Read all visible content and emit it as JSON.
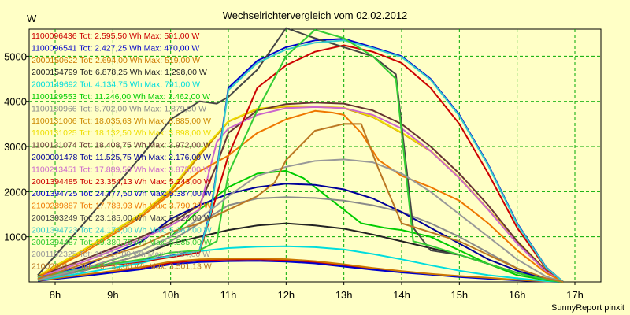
{
  "chart_data": {
    "type": "line",
    "title": "Wechselrichtervergleich vom 02.02.2012",
    "ylabel": "W",
    "credit": "SunnyReport pinxit",
    "ylim": [
      0,
      5600
    ],
    "xlim": [
      7.55,
      17.45
    ],
    "yticks": [
      1000,
      2000,
      3000,
      4000,
      5000
    ],
    "xticks": [
      {
        "v": 8,
        "label": "8h"
      },
      {
        "v": 9,
        "label": "9h"
      },
      {
        "v": 10,
        "label": "10h"
      },
      {
        "v": 11,
        "label": "11h"
      },
      {
        "v": 12,
        "label": "12h"
      },
      {
        "v": 13,
        "label": "13h"
      },
      {
        "v": 14,
        "label": "14h"
      },
      {
        "v": 15,
        "label": "15h"
      },
      {
        "v": 16,
        "label": "16h"
      },
      {
        "v": 17,
        "label": "17h"
      }
    ],
    "series": [
      {
        "name": "1100096436 Tot: 2.595,50 Wh Max: 501,00 W",
        "color": "#cc0000",
        "x": [
          7.7,
          8.5,
          9.5,
          10,
          10.5,
          11,
          11.5,
          12,
          12.5,
          13,
          13.5,
          14,
          14.5,
          15,
          15.5,
          16,
          16.5,
          16.8
        ],
        "y": [
          30,
          150,
          300,
          420,
          480,
          495,
          500,
          480,
          430,
          360,
          290,
          230,
          170,
          120,
          80,
          40,
          10,
          0
        ]
      },
      {
        "name": "1100096541 Tot: 2.427,25 Wh Max: 470,00 W",
        "color": "#0000cc",
        "x": [
          7.7,
          8.5,
          9.5,
          10,
          10.5,
          11,
          11.5,
          12,
          12.5,
          13,
          13.5,
          14,
          14.5,
          15,
          15.5,
          16,
          16.5,
          16.8
        ],
        "y": [
          25,
          130,
          280,
          390,
          440,
          460,
          465,
          450,
          410,
          340,
          270,
          210,
          160,
          110,
          70,
          35,
          8,
          0
        ]
      },
      {
        "name": "2000150622 Tot: 2.694,00 Wh Max: 519,00 W",
        "color": "#cc7700",
        "x": [
          7.7,
          8.5,
          9.5,
          10,
          10.5,
          11,
          11.5,
          12,
          12.5,
          13,
          13.5,
          14,
          14.5,
          15,
          15.5,
          16,
          16.5,
          16.8
        ],
        "y": [
          30,
          160,
          330,
          450,
          500,
          515,
          519,
          505,
          460,
          390,
          310,
          240,
          180,
          130,
          90,
          45,
          12,
          0
        ]
      },
      {
        "name": "2000154799 Tot: 6.878,25 Wh Max: 1.298,00 W",
        "color": "#222222",
        "x": [
          7.7,
          8.5,
          9.5,
          10,
          10.5,
          11,
          11.5,
          12,
          12.5,
          13,
          13.5,
          14,
          14.5,
          15,
          15.5,
          16,
          16.5,
          16.8
        ],
        "y": [
          60,
          250,
          600,
          850,
          1000,
          1150,
          1250,
          1298,
          1250,
          1180,
          1050,
          900,
          750,
          600,
          400,
          200,
          60,
          0
        ]
      },
      {
        "name": "2000149692 Tot: 4.134,75 Wh Max: 791,00 W",
        "color": "#00dddd",
        "x": [
          7.7,
          8.5,
          9.5,
          10,
          10.5,
          11,
          11.5,
          12,
          12.5,
          13,
          13.5,
          14,
          14.5,
          15,
          15.5,
          16,
          16.5,
          16.8
        ],
        "y": [
          40,
          200,
          420,
          580,
          680,
          750,
          780,
          791,
          770,
          720,
          620,
          500,
          370,
          250,
          150,
          80,
          20,
          0
        ]
      },
      {
        "name": "1100129553 Tot: 11.246,00 Wh Max: 2.462,00 W",
        "color": "#00cc00",
        "x": [
          7.7,
          8.5,
          9.5,
          10,
          10.5,
          11,
          11.5,
          12,
          12.3,
          12.7,
          13,
          13.3,
          13.7,
          14,
          14.5,
          15,
          15.5,
          16,
          16.5,
          16.8
        ],
        "y": [
          50,
          280,
          700,
          1000,
          1600,
          2100,
          2400,
          2462,
          2300,
          1900,
          1600,
          1300,
          1200,
          1150,
          1000,
          700,
          400,
          150,
          40,
          0
        ]
      },
      {
        "name": "1100130966 Tot: 8.702,00 Wh Max: 1.879,00 W",
        "color": "#8a8a8a",
        "x": [
          7.7,
          8.5,
          9.5,
          10,
          10.5,
          11,
          11.5,
          12,
          12.5,
          13,
          13.5,
          14,
          14.5,
          15,
          15.5,
          16,
          16.5,
          16.8
        ],
        "y": [
          50,
          250,
          600,
          900,
          1300,
          1700,
          1850,
          1879,
          1860,
          1800,
          1700,
          1550,
          1300,
          1000,
          650,
          300,
          80,
          0
        ]
      },
      {
        "name": "1100131006 Tot: 18.035,63 Wh Max: 3.885,00 W",
        "color": "#cc8800",
        "x": [
          7.7,
          8.5,
          9.5,
          10,
          10.5,
          11,
          11.5,
          12,
          12.5,
          13,
          13.5,
          14,
          14.5,
          15,
          15.5,
          16,
          16.5,
          16.8
        ],
        "y": [
          120,
          700,
          1500,
          2000,
          2800,
          3550,
          3820,
          3885,
          3880,
          3850,
          3650,
          3300,
          2900,
          2300,
          1600,
          900,
          250,
          0
        ]
      },
      {
        "name": "1100131025 Tot: 18.132,50 Wh Max: 3.898,00 W",
        "color": "#eedd00",
        "x": [
          7.7,
          8.5,
          9.5,
          10,
          10.5,
          11,
          11.5,
          12,
          12.5,
          13,
          13.5,
          14,
          14.5,
          15,
          15.5,
          16,
          16.5,
          16.8
        ],
        "y": [
          130,
          720,
          1520,
          2050,
          2850,
          3560,
          3840,
          3898,
          3890,
          3860,
          3660,
          3310,
          2910,
          2310,
          1610,
          910,
          260,
          0
        ]
      },
      {
        "name": "1100131074 Tot: 18.408,75 Wh Max: 3.972,00 W",
        "color": "#663333",
        "x": [
          7.7,
          8.5,
          9.5,
          10,
          10.5,
          10.8,
          11,
          11.5,
          12,
          12.5,
          13,
          13.5,
          14,
          14.5,
          15,
          15.5,
          16,
          16.5,
          16.8
        ],
        "y": [
          120,
          500,
          1000,
          1300,
          1700,
          2600,
          3300,
          3800,
          3940,
          3972,
          3950,
          3800,
          3500,
          3000,
          2400,
          1700,
          900,
          250,
          0
        ]
      },
      {
        "name": "2000001478 Tot: 11.525,75 Wh Max: 2.176,00 W",
        "color": "#000099",
        "x": [
          7.7,
          8.5,
          9.5,
          10,
          10.5,
          11,
          11.5,
          12,
          12.5,
          13,
          13.5,
          14,
          14.5,
          15,
          15.5,
          16,
          16.5,
          16.8
        ],
        "y": [
          60,
          350,
          900,
          1400,
          1700,
          1950,
          2100,
          2176,
          2150,
          2050,
          1850,
          1550,
          1200,
          850,
          500,
          250,
          60,
          0
        ]
      },
      {
        "name": "1100213451 Tot: 17.889,50 Wh Max: 3.875,00 W",
        "color": "#cc66cc",
        "x": [
          7.7,
          8.5,
          9.5,
          10,
          10.5,
          10.8,
          11,
          11.5,
          12,
          12.5,
          13,
          13.5,
          14,
          14.5,
          15,
          15.5,
          16,
          16.5,
          16.8
        ],
        "y": [
          100,
          450,
          950,
          1250,
          1600,
          3100,
          3400,
          3700,
          3850,
          3875,
          3850,
          3700,
          3400,
          2900,
          2300,
          1600,
          850,
          230,
          0
        ]
      },
      {
        "name": "2001394485 Tot: 23.354,13 Wh Max: 5.243,00 W",
        "color": "#cc0000",
        "x": [
          7.7,
          8.5,
          9.5,
          10,
          10.5,
          10.7,
          11,
          11.5,
          12,
          12.5,
          13,
          13.5,
          14,
          14.5,
          15,
          15.5,
          16,
          16.5,
          16.8
        ],
        "y": [
          100,
          300,
          450,
          550,
          650,
          1500,
          2800,
          4300,
          4800,
          5100,
          5243,
          5100,
          4850,
          4300,
          3500,
          2400,
          1200,
          300,
          0
        ]
      },
      {
        "name": "2001394725 Tot: 24.477,50 Wh Max: 5.387,00 W",
        "color": "#0000cc",
        "x": [
          7.7,
          8.5,
          9.5,
          10,
          10.5,
          10.7,
          11,
          11.5,
          12,
          12.5,
          13,
          13.5,
          14,
          14.5,
          15,
          15.5,
          16,
          16.5,
          16.8
        ],
        "y": [
          100,
          320,
          480,
          580,
          700,
          1600,
          4300,
          4900,
          5200,
          5350,
          5387,
          5200,
          5000,
          4500,
          3700,
          2600,
          1300,
          330,
          0
        ]
      },
      {
        "name": "2100289887 Tot: 17.783,93 Wh Max: 3.790,29 W",
        "color": "#ee7700",
        "x": [
          7.7,
          8.5,
          9.5,
          10,
          10.5,
          11,
          11.5,
          12,
          12.5,
          12.8,
          13,
          13.3,
          13.6,
          14,
          14.5,
          15,
          15.5,
          16,
          16.5,
          16.8
        ],
        "y": [
          100,
          650,
          1450,
          1950,
          2450,
          2800,
          3300,
          3600,
          3790,
          3750,
          3700,
          3300,
          2700,
          2350,
          2100,
          1800,
          1300,
          700,
          200,
          0
        ]
      },
      {
        "name": "2001393249 Tot: 23.185,00 Wh Max: 5.622,00 W",
        "color": "#444444",
        "x": [
          7.7,
          8.5,
          9.5,
          10,
          10.5,
          10.8,
          11,
          11.5,
          12,
          12.5,
          13,
          13.5,
          13.9,
          14.2,
          14.5,
          15,
          15.5,
          16,
          16.5,
          16.8
        ],
        "y": [
          150,
          1300,
          2800,
          3600,
          4000,
          3950,
          4100,
          4700,
          5622,
          5400,
          5200,
          5000,
          4600,
          1200,
          700,
          600,
          400,
          200,
          50,
          0
        ]
      },
      {
        "name": "2001394723 Tot: 24.173,00 Wh Max: 5.387,00 W",
        "color": "#33cccc",
        "x": [
          7.7,
          8.5,
          9.5,
          10,
          10.5,
          10.7,
          11,
          11.5,
          12,
          12.5,
          13,
          13.5,
          14,
          14.5,
          15,
          15.5,
          16,
          16.5,
          16.8
        ],
        "y": [
          95,
          310,
          470,
          570,
          690,
          1550,
          4250,
          4850,
          5150,
          5300,
          5350,
          5180,
          4980,
          4480,
          3680,
          2580,
          1280,
          320,
          0
        ]
      },
      {
        "name": "2001394487 Tot: 19.380,75 Wh Max: 5.585,00 W",
        "color": "#33cc33",
        "x": [
          7.7,
          8.5,
          9.5,
          10,
          10.5,
          10.8,
          11,
          11.5,
          12,
          12.5,
          13,
          13.5,
          13.9,
          14.2,
          14.5,
          15,
          15.5,
          16,
          16.5,
          16.8
        ],
        "y": [
          80,
          300,
          500,
          650,
          700,
          900,
          2400,
          3800,
          5000,
          5585,
          5400,
          5000,
          4500,
          900,
          800,
          600,
          400,
          200,
          50,
          0
        ]
      },
      {
        "name": "2001102325 Tot: 11.517,00 Wh Max: 2.714,00 W",
        "color": "#999999",
        "x": [
          7.7,
          8.5,
          9.5,
          10,
          10.5,
          11,
          11.5,
          12,
          12.5,
          13,
          13.5,
          14,
          14.5,
          15,
          15.5,
          16,
          16.5,
          16.8
        ],
        "y": [
          50,
          300,
          700,
          1000,
          1400,
          1900,
          2350,
          2550,
          2680,
          2714,
          2650,
          2400,
          2000,
          1500,
          1000,
          500,
          120,
          0
        ]
      },
      {
        "name": "2100290102 Tot: 16.130,00 Wh Max: 3.501,13 W",
        "color": "#bb7722",
        "x": [
          7.7,
          8.5,
          9.5,
          10,
          10.5,
          11,
          11.5,
          11.8,
          12,
          12.5,
          13,
          13.3,
          13.6,
          14,
          14.5,
          15,
          15.5,
          16,
          16.5,
          16.8
        ],
        "y": [
          70,
          400,
          800,
          1100,
          1300,
          1600,
          1900,
          2200,
          2700,
          3350,
          3501,
          3500,
          2500,
          1300,
          1100,
          900,
          600,
          300,
          80,
          0
        ]
      }
    ]
  }
}
